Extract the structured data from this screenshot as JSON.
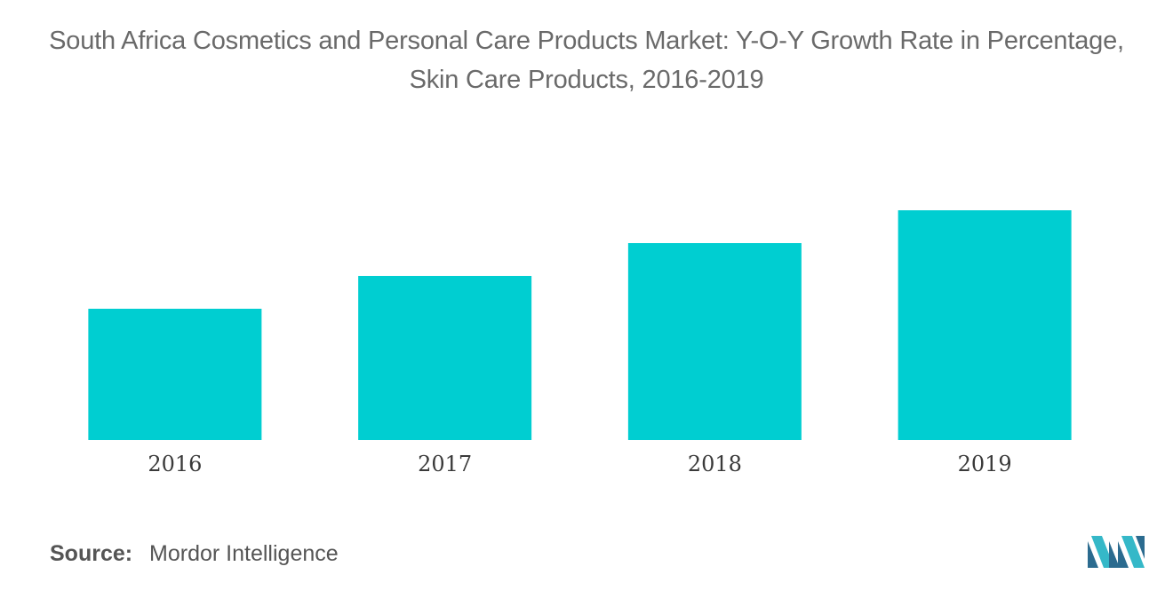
{
  "chart_data": {
    "type": "bar",
    "title": "South Africa Cosmetics and Personal Care Products Market: Y-O-Y Growth Rate in Percentage, Skin Care Products, 2016-2019",
    "categories": [
      "2016",
      "2017",
      "2018",
      "2019"
    ],
    "values": [
      4.0,
      5.0,
      6.0,
      7.0
    ],
    "ylim": [
      0,
      8
    ],
    "xlabel": "",
    "ylabel": "",
    "grid": false,
    "legend": "none",
    "bar_color": "#00CED1"
  },
  "source": {
    "label": "Source:",
    "text": "Mordor Intelligence"
  },
  "colors": {
    "bar": "#00CED1",
    "title": "#6a6a6a",
    "logo_dark": "#2b6b8f",
    "logo_light": "#35b8c8"
  },
  "logo": {
    "icon": "mordor-intelligence-logo"
  }
}
